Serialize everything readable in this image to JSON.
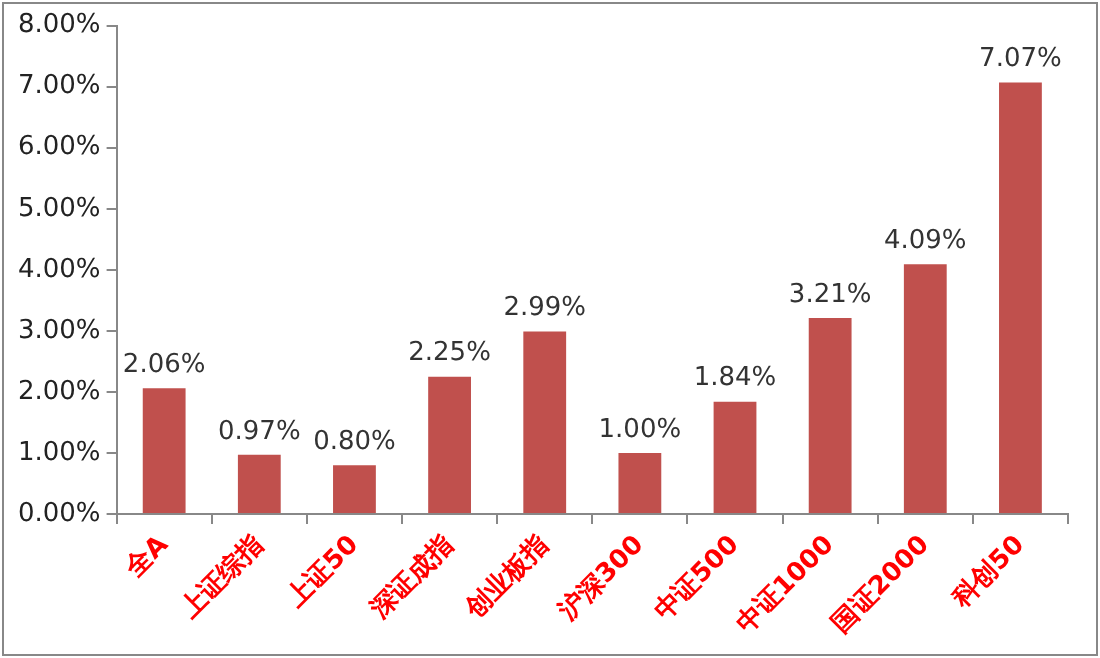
{
  "chart_data": {
    "type": "bar",
    "categories": [
      "全A",
      "上证综指",
      "上证50",
      "深证成指",
      "创业板指",
      "沪深300",
      "中证500",
      "中证1000",
      "国证2000",
      "科创50"
    ],
    "values": [
      2.06,
      0.97,
      0.8,
      2.25,
      2.99,
      1.0,
      1.84,
      3.21,
      4.09,
      7.07
    ],
    "value_labels": [
      "2.06%",
      "0.97%",
      "0.80%",
      "2.25%",
      "2.99%",
      "1.00%",
      "1.84%",
      "3.21%",
      "4.09%",
      "7.07%"
    ],
    "color": "#c0504d",
    "ylim": [
      0,
      8
    ],
    "yticks": [
      {
        "value": 0,
        "label": "0.00%"
      },
      {
        "value": 1,
        "label": "1.00%"
      },
      {
        "value": 2,
        "label": "2.00%"
      },
      {
        "value": 3,
        "label": "3.00%"
      },
      {
        "value": 4,
        "label": "4.00%"
      },
      {
        "value": 5,
        "label": "5.00%"
      },
      {
        "value": 6,
        "label": "6.00%"
      },
      {
        "value": 7,
        "label": "7.00%"
      },
      {
        "value": 8,
        "label": "8.00%"
      }
    ],
    "grid": false,
    "legend": false
  }
}
